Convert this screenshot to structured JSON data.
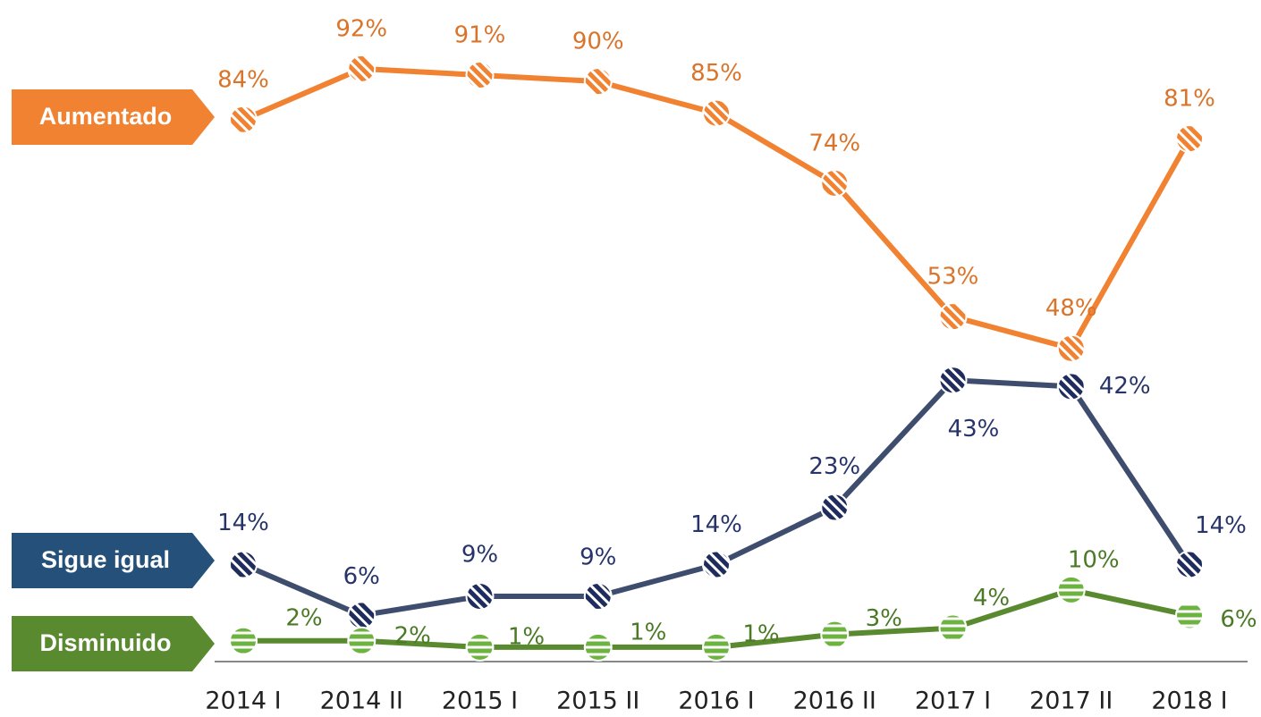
{
  "chart_data": {
    "type": "line",
    "categories": [
      "2014 I",
      "2014 II",
      "2015 I",
      "2015 II",
      "2016 I",
      "2016 II",
      "2017 I",
      "2017 II",
      "2018 I"
    ],
    "ylim": [
      0,
      100
    ],
    "series": [
      {
        "name": "Aumentado",
        "color": "#f08232",
        "marker_color": "#f08232",
        "label_color": "#d9742a",
        "values": [
          84,
          92,
          91,
          90,
          85,
          74,
          53,
          48,
          81
        ],
        "value_labels": [
          "84%",
          "92%",
          "91%",
          "90%",
          "85%",
          "74%",
          "53%",
          "48%",
          "81%"
        ]
      },
      {
        "name": "Sigue igual",
        "color": "#3e4d6e",
        "marker_color": "#1f2c5e",
        "label_color": "#26346a",
        "values": [
          14,
          6,
          9,
          9,
          14,
          23,
          43,
          42,
          14
        ],
        "value_labels": [
          "14%",
          "6%",
          "9%",
          "9%",
          "14%",
          "23%",
          "43%",
          "42%",
          "14%"
        ]
      },
      {
        "name": "Disminuido",
        "color": "#5a8a30",
        "marker_color": "#6db33f",
        "label_color": "#4a7a26",
        "values": [
          2,
          2,
          1,
          1,
          1,
          3,
          4,
          10,
          6
        ],
        "value_labels": [
          "2%",
          "2%",
          "1%",
          "1%",
          "1%",
          "3%",
          "4%",
          "10%",
          "6%"
        ]
      }
    ]
  }
}
